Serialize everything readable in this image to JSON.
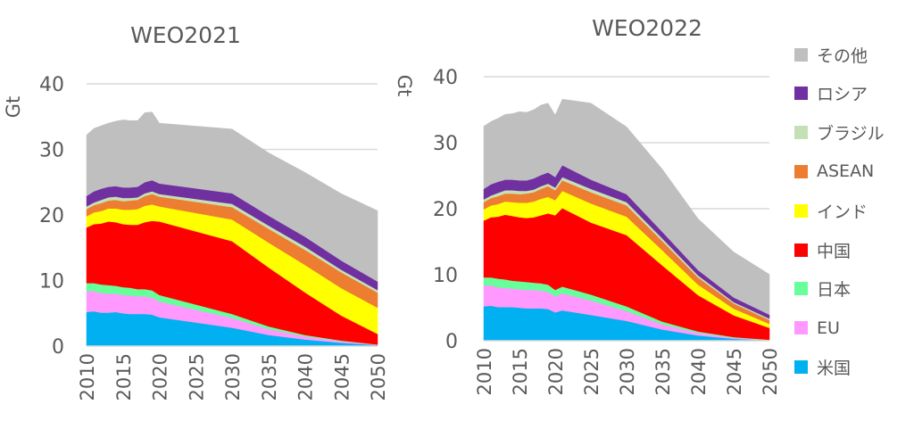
{
  "chart_data": [
    {
      "type": "area",
      "stacked": true,
      "title": "WEO2021",
      "ylabel": "Gt",
      "xlabel": "",
      "ylim": [
        0,
        40
      ],
      "yticks": [
        0,
        10,
        20,
        30,
        40
      ],
      "xticks": [
        2010,
        2015,
        2020,
        2025,
        2030,
        2035,
        2040,
        2045,
        2050
      ],
      "grid": true,
      "x": [
        2010,
        2011,
        2012,
        2013,
        2014,
        2015,
        2016,
        2017,
        2018,
        2019,
        2020,
        2030,
        2035,
        2040,
        2045,
        2050
      ],
      "series": [
        {
          "name": "米国",
          "color": "#00B0F0",
          "values": [
            5.2,
            5.3,
            5.1,
            5.1,
            5.2,
            5.0,
            4.9,
            4.9,
            4.9,
            4.8,
            4.4,
            2.8,
            1.7,
            1.0,
            0.5,
            0.15
          ]
        },
        {
          "name": "EU",
          "color": "#FF99FF",
          "values": [
            3.2,
            3.1,
            3.0,
            2.9,
            2.8,
            2.8,
            2.8,
            2.7,
            2.7,
            2.6,
            2.4,
            1.5,
            0.9,
            0.5,
            0.25,
            0.05
          ]
        },
        {
          "name": "日本",
          "color": "#66FF99",
          "values": [
            1.2,
            1.2,
            1.3,
            1.3,
            1.2,
            1.2,
            1.2,
            1.1,
            1.1,
            1.1,
            1.0,
            0.6,
            0.4,
            0.2,
            0.1,
            0.05
          ]
        },
        {
          "name": "中国",
          "color": "#FF0000",
          "values": [
            8.5,
            9.0,
            9.3,
            9.7,
            9.7,
            9.6,
            9.6,
            9.8,
            10.2,
            10.6,
            11.2,
            11.1,
            9.0,
            6.5,
            3.8,
            1.6
          ]
        },
        {
          "name": "インド",
          "color": "#FFFF00",
          "values": [
            1.7,
            1.8,
            1.9,
            2.0,
            2.1,
            2.2,
            2.3,
            2.4,
            2.5,
            2.5,
            2.3,
            3.3,
            3.8,
            4.2,
            4.2,
            4.0
          ]
        },
        {
          "name": "ASEAN",
          "color": "#ED7D31",
          "values": [
            1.1,
            1.1,
            1.2,
            1.2,
            1.3,
            1.3,
            1.4,
            1.4,
            1.5,
            1.6,
            1.5,
            1.9,
            2.1,
            2.3,
            2.4,
            2.3
          ]
        },
        {
          "name": "ブラジル",
          "color": "#C5E0B4",
          "values": [
            0.4,
            0.4,
            0.5,
            0.5,
            0.5,
            0.5,
            0.4,
            0.4,
            0.4,
            0.4,
            0.4,
            0.5,
            0.5,
            0.5,
            0.4,
            0.4
          ]
        },
        {
          "name": "ロシア",
          "color": "#7030A0",
          "values": [
            1.6,
            1.7,
            1.7,
            1.6,
            1.6,
            1.6,
            1.6,
            1.6,
            1.7,
            1.7,
            1.6,
            1.6,
            1.5,
            1.5,
            1.4,
            1.3
          ]
        },
        {
          "name": "その他",
          "color": "#BFBFBF",
          "values": [
            9.3,
            9.6,
            9.6,
            9.7,
            9.9,
            10.3,
            10.2,
            10.1,
            10.6,
            10.4,
            9.2,
            9.8,
            9.6,
            9.8,
            10.2,
            10.8
          ]
        }
      ]
    },
    {
      "type": "area",
      "stacked": true,
      "title": "WEO2022",
      "ylabel": "Gt",
      "xlabel": "",
      "ylim": [
        0,
        40
      ],
      "yticks": [
        0,
        10,
        20,
        30,
        40
      ],
      "xticks": [
        2010,
        2015,
        2020,
        2025,
        2030,
        2035,
        2040,
        2045,
        2050
      ],
      "grid": true,
      "x": [
        2010,
        2011,
        2012,
        2013,
        2014,
        2015,
        2016,
        2017,
        2018,
        2019,
        2020,
        2021,
        2025,
        2030,
        2035,
        2040,
        2045,
        2050
      ],
      "series": [
        {
          "name": "米国",
          "color": "#00B0F0",
          "values": [
            5.2,
            5.3,
            5.1,
            5.1,
            5.1,
            5.0,
            4.9,
            4.9,
            4.9,
            4.8,
            4.3,
            4.6,
            3.9,
            3.0,
            1.7,
            0.8,
            0.3,
            0.05
          ]
        },
        {
          "name": "EU",
          "color": "#FF99FF",
          "values": [
            3.2,
            3.1,
            3.0,
            2.9,
            2.8,
            2.8,
            2.8,
            2.8,
            2.7,
            2.6,
            2.4,
            2.6,
            2.2,
            1.5,
            0.8,
            0.4,
            0.15,
            0.05
          ]
        },
        {
          "name": "日本",
          "color": "#66FF99",
          "values": [
            1.2,
            1.2,
            1.3,
            1.3,
            1.2,
            1.2,
            1.2,
            1.1,
            1.1,
            1.1,
            1.0,
            1.0,
            0.9,
            0.7,
            0.4,
            0.2,
            0.1,
            0.05
          ]
        },
        {
          "name": "中国",
          "color": "#FF0000",
          "values": [
            8.6,
            9.1,
            9.4,
            9.8,
            9.8,
            9.7,
            9.7,
            9.9,
            10.3,
            10.8,
            11.3,
            11.9,
            10.9,
            10.8,
            8.5,
            5.5,
            3.3,
            1.8
          ]
        },
        {
          "name": "インド",
          "color": "#FFFF00",
          "values": [
            1.7,
            1.8,
            1.9,
            2.0,
            2.1,
            2.2,
            2.3,
            2.4,
            2.5,
            2.5,
            2.3,
            2.6,
            2.9,
            2.8,
            2.3,
            1.6,
            1.0,
            0.6
          ]
        },
        {
          "name": "ASEAN",
          "color": "#ED7D31",
          "values": [
            1.1,
            1.1,
            1.2,
            1.2,
            1.3,
            1.3,
            1.4,
            1.4,
            1.5,
            1.6,
            1.5,
            1.6,
            1.7,
            1.7,
            1.4,
            1.1,
            0.8,
            0.6
          ]
        },
        {
          "name": "ブラジル",
          "color": "#C5E0B4",
          "values": [
            0.4,
            0.4,
            0.5,
            0.5,
            0.5,
            0.5,
            0.4,
            0.4,
            0.4,
            0.4,
            0.4,
            0.5,
            0.5,
            0.5,
            0.4,
            0.3,
            0.2,
            0.2
          ]
        },
        {
          "name": "ロシア",
          "color": "#7030A0",
          "values": [
            1.6,
            1.7,
            1.7,
            1.6,
            1.6,
            1.6,
            1.6,
            1.7,
            1.7,
            1.7,
            1.6,
            1.8,
            1.4,
            1.2,
            1.0,
            0.8,
            0.7,
            0.6
          ]
        },
        {
          "name": "その他",
          "color": "#BFBFBF",
          "values": [
            9.5,
            9.5,
            9.6,
            9.9,
            10.0,
            10.4,
            10.3,
            10.4,
            10.6,
            10.5,
            9.4,
            10.0,
            11.6,
            10.2,
            9.5,
            7.8,
            6.9,
            6.1
          ]
        }
      ]
    }
  ],
  "legend": {
    "placement": "right",
    "items": [
      {
        "name": "その他",
        "color": "#BFBFBF"
      },
      {
        "name": "ロシア",
        "color": "#7030A0"
      },
      {
        "name": "ブラジル",
        "color": "#C5E0B4"
      },
      {
        "name": "ASEAN",
        "color": "#ED7D31"
      },
      {
        "name": "インド",
        "color": "#FFFF00"
      },
      {
        "name": "中国",
        "color": "#FF0000"
      },
      {
        "name": "日本",
        "color": "#66FF99"
      },
      {
        "name": "EU",
        "color": "#FF99FF"
      },
      {
        "name": "米国",
        "color": "#00B0F0"
      }
    ]
  }
}
